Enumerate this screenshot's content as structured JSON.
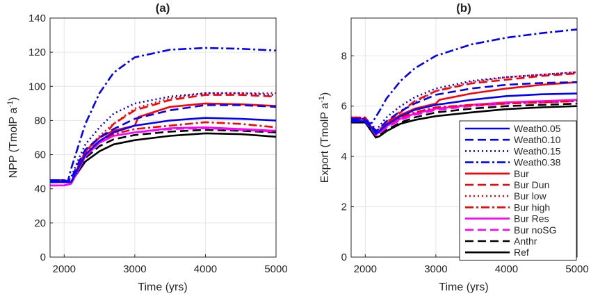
{
  "chart_data": [
    {
      "type": "line",
      "title": "(a)",
      "xlabel": "Time (yrs)",
      "ylabel": "NPP (TmolP a",
      "ylabel_sup": "-1",
      "ylabel_end": ")",
      "xlim": [
        1800,
        5000
      ],
      "ylim": [
        0,
        140
      ],
      "xticks": [
        2000,
        3000,
        4000,
        5000
      ],
      "yticks": [
        0,
        20,
        40,
        60,
        80,
        100,
        120,
        140
      ],
      "grid": true,
      "series": [
        {
          "name": "Weath0.05",
          "color": "#0000ff",
          "dash": "solid",
          "x": [
            1800,
            2000,
            2100,
            2200,
            2300,
            2500,
            2700,
            3000,
            3500,
            4000,
            4500,
            5000
          ],
          "y": [
            44,
            44,
            44,
            52,
            60,
            68,
            73,
            77,
            80,
            81.5,
            81,
            80
          ]
        },
        {
          "name": "Weath0.10",
          "color": "#0000ff",
          "dash": "dash",
          "x": [
            1800,
            2000,
            2050,
            2100,
            2200,
            2300,
            2500,
            2700,
            3000,
            3500,
            4000,
            4500,
            5000
          ],
          "y": [
            45,
            45,
            44,
            46,
            55,
            63,
            70,
            75,
            81,
            86,
            89,
            89,
            88
          ]
        },
        {
          "name": "Weath0.15",
          "color": "#0000ff",
          "dash": "dot",
          "x": [
            1800,
            2000,
            2050,
            2100,
            2200,
            2300,
            2500,
            2700,
            3000,
            3500,
            4000,
            4500,
            5000
          ],
          "y": [
            45,
            45,
            44,
            47,
            57,
            66,
            76,
            84,
            90,
            94,
            96,
            96,
            95
          ]
        },
        {
          "name": "Weath0.38",
          "color": "#0000ff",
          "dash": "dashdot",
          "x": [
            1800,
            2000,
            2050,
            2100,
            2200,
            2300,
            2500,
            2700,
            3000,
            3500,
            4000,
            4500,
            5000
          ],
          "y": [
            45,
            45,
            44,
            52,
            65,
            78,
            96,
            108,
            117,
            121.5,
            122.5,
            122,
            121
          ]
        },
        {
          "name": "Bur",
          "color": "#ff0000",
          "dash": "solid",
          "x": [
            1800,
            2000,
            2100,
            2200,
            2300,
            2500,
            2700,
            3000,
            3050,
            3500,
            4000,
            4500,
            5000
          ],
          "y": [
            45,
            45,
            44,
            53,
            62,
            70,
            74,
            77,
            82,
            88,
            90,
            89.5,
            88.5
          ]
        },
        {
          "name": "Bur Dun",
          "color": "#ff0000",
          "dash": "dash",
          "x": [
            1800,
            2000,
            2100,
            2200,
            2300,
            2500,
            2600,
            2700,
            3000,
            3500,
            4000,
            4500,
            5000
          ],
          "y": [
            45,
            45,
            44,
            53,
            62,
            70,
            73,
            78,
            86,
            92,
            95,
            95,
            94
          ]
        },
        {
          "name": "Bur low",
          "color": "#ff0000",
          "dash": "dot",
          "x": [
            1800,
            2000,
            2100,
            2200,
            2300,
            2500,
            2700,
            3000,
            3500,
            4000,
            4500,
            5000
          ],
          "y": [
            45,
            45,
            44,
            53,
            62,
            71,
            78,
            87,
            93,
            96,
            96,
            96
          ]
        },
        {
          "name": "Bur high",
          "color": "#ff0000",
          "dash": "dashdot",
          "x": [
            1800,
            2000,
            2100,
            2200,
            2300,
            2500,
            2700,
            3000,
            3500,
            4000,
            4500,
            5000
          ],
          "y": [
            45,
            45,
            44,
            53,
            61,
            68,
            72,
            75,
            77,
            79,
            78,
            76
          ]
        },
        {
          "name": "Bur Res",
          "color": "#ff00ff",
          "dash": "solid",
          "x": [
            1800,
            1900,
            2000,
            2100,
            2200,
            2300,
            2500,
            2700,
            3000,
            3500,
            4000,
            4500,
            5000
          ],
          "y": [
            42,
            42,
            42,
            43,
            51,
            59,
            67,
            71,
            73,
            75.5,
            76,
            75,
            74
          ]
        },
        {
          "name": "Bur noSG",
          "color": "#ff00ff",
          "dash": "dash",
          "x": [
            1800,
            1900,
            2000,
            2100,
            2200,
            2300,
            2500,
            2700,
            3000,
            3500,
            4000,
            4500,
            5000
          ],
          "y": [
            42,
            42,
            42,
            43,
            51,
            59,
            67,
            71,
            73,
            75,
            75.5,
            74.5,
            73.5
          ]
        },
        {
          "name": "Anthr",
          "color": "#000000",
          "dash": "dash",
          "x": [
            1800,
            2000,
            2100,
            2200,
            2300,
            2500,
            2700,
            3000,
            3500,
            4000,
            4500,
            5000
          ],
          "y": [
            44,
            44,
            44,
            51,
            58,
            65,
            69,
            71.5,
            73.5,
            74.5,
            74,
            73
          ]
        },
        {
          "name": "Ref",
          "color": "#000000",
          "dash": "solid",
          "x": [
            1800,
            2000,
            2100,
            2200,
            2300,
            2500,
            2700,
            3000,
            3500,
            4000,
            4500,
            5000
          ],
          "y": [
            44,
            44,
            44,
            50,
            56,
            62,
            66,
            68.5,
            71,
            72.5,
            72,
            70.5
          ]
        }
      ]
    },
    {
      "type": "line",
      "title": "(b)",
      "xlabel": "Time (yrs)",
      "ylabel": "Export (TmolP a",
      "ylabel_sup": "-1",
      "ylabel_end": ")",
      "xlim": [
        1800,
        5000
      ],
      "ylim": [
        0,
        9.5
      ],
      "xticks": [
        2000,
        3000,
        4000,
        5000
      ],
      "yticks": [
        0,
        2,
        4,
        6,
        8
      ],
      "grid": true,
      "legend": "bottom-right",
      "series": [
        {
          "name": "Weath0.05",
          "color": "#0000ff",
          "dash": "solid",
          "x": [
            1800,
            2000,
            2100,
            2150,
            2200,
            2300,
            2500,
            2700,
            3000,
            3500,
            4000,
            4500,
            5000
          ],
          "y": [
            5.4,
            5.4,
            5.1,
            4.9,
            5.0,
            5.25,
            5.6,
            5.85,
            6.05,
            6.25,
            6.4,
            6.47,
            6.5
          ]
        },
        {
          "name": "Weath0.10",
          "color": "#0000ff",
          "dash": "dash",
          "x": [
            1800,
            2000,
            2100,
            2150,
            2200,
            2300,
            2500,
            2700,
            3000,
            3500,
            4000,
            4500,
            5000
          ],
          "y": [
            5.45,
            5.45,
            5.2,
            5.0,
            5.1,
            5.4,
            5.8,
            6.1,
            6.45,
            6.7,
            6.85,
            6.92,
            6.95
          ]
        },
        {
          "name": "Weath0.15",
          "color": "#0000ff",
          "dash": "dot",
          "x": [
            1800,
            2000,
            2100,
            2150,
            2200,
            2300,
            2500,
            2700,
            3000,
            3500,
            4000,
            4500,
            5000
          ],
          "y": [
            5.5,
            5.5,
            5.25,
            5.05,
            5.2,
            5.55,
            6.0,
            6.35,
            6.7,
            7.0,
            7.15,
            7.25,
            7.35
          ]
        },
        {
          "name": "Weath0.38",
          "color": "#0000ff",
          "dash": "dashdot",
          "x": [
            1800,
            2000,
            2050,
            2100,
            2200,
            2300,
            2500,
            2700,
            3000,
            3500,
            4000,
            4500,
            5000
          ],
          "y": [
            5.5,
            5.5,
            5.3,
            5.35,
            5.8,
            6.3,
            7.0,
            7.5,
            8.0,
            8.45,
            8.72,
            8.9,
            9.05
          ]
        },
        {
          "name": "Bur",
          "color": "#ff0000",
          "dash": "solid",
          "x": [
            1800,
            2000,
            2100,
            2150,
            2200,
            2300,
            2500,
            2700,
            3000,
            3050,
            3500,
            4000,
            4500,
            5000
          ],
          "y": [
            5.5,
            5.5,
            5.1,
            4.9,
            5.0,
            5.3,
            5.65,
            5.9,
            6.1,
            6.25,
            6.5,
            6.7,
            6.85,
            6.95
          ]
        },
        {
          "name": "Bur Dun",
          "color": "#ff0000",
          "dash": "dash",
          "x": [
            1800,
            2000,
            2100,
            2150,
            2200,
            2300,
            2500,
            2700,
            3000,
            3500,
            4000,
            4500,
            5000
          ],
          "y": [
            5.55,
            5.55,
            5.15,
            4.95,
            5.05,
            5.35,
            5.75,
            6.2,
            6.6,
            6.9,
            7.05,
            7.2,
            7.3
          ]
        },
        {
          "name": "Bur low",
          "color": "#ff0000",
          "dash": "dot",
          "x": [
            1800,
            2000,
            2100,
            2150,
            2200,
            2300,
            2500,
            2700,
            3000,
            3500,
            4000,
            4500,
            5000
          ],
          "y": [
            5.55,
            5.55,
            5.15,
            4.95,
            5.05,
            5.35,
            5.8,
            6.15,
            6.6,
            6.95,
            7.15,
            7.25,
            7.35
          ]
        },
        {
          "name": "Bur high",
          "color": "#ff0000",
          "dash": "dashdot",
          "x": [
            1800,
            2000,
            2100,
            2150,
            2200,
            2300,
            2500,
            2700,
            3000,
            3500,
            4000,
            4500,
            5000
          ],
          "y": [
            5.5,
            5.5,
            5.1,
            4.9,
            5.0,
            5.25,
            5.55,
            5.75,
            5.95,
            6.05,
            6.1,
            6.15,
            6.2
          ]
        },
        {
          "name": "Bur Res",
          "color": "#ff00ff",
          "dash": "solid",
          "x": [
            1800,
            2000,
            2100,
            2150,
            2200,
            2300,
            2500,
            2700,
            3000,
            3500,
            4000,
            4500,
            5000
          ],
          "y": [
            5.45,
            5.45,
            5.1,
            4.9,
            4.95,
            5.2,
            5.5,
            5.7,
            5.9,
            6.05,
            6.15,
            6.2,
            6.25
          ]
        },
        {
          "name": "Bur noSG",
          "color": "#ff00ff",
          "dash": "dash",
          "x": [
            1800,
            2000,
            2100,
            2150,
            2200,
            2300,
            2500,
            2700,
            3000,
            3500,
            4000,
            4500,
            5000
          ],
          "y": [
            5.4,
            5.4,
            5.05,
            4.85,
            4.9,
            5.15,
            5.45,
            5.65,
            5.85,
            6.0,
            6.1,
            6.15,
            6.2
          ]
        },
        {
          "name": "Anthr",
          "color": "#000000",
          "dash": "dash",
          "x": [
            1800,
            2000,
            2100,
            2150,
            2200,
            2300,
            2500,
            2700,
            3000,
            3500,
            4000,
            4500,
            5000
          ],
          "y": [
            5.4,
            5.4,
            5.0,
            4.8,
            4.85,
            5.05,
            5.35,
            5.55,
            5.75,
            5.9,
            6.0,
            6.05,
            6.1
          ]
        },
        {
          "name": "Ref",
          "color": "#000000",
          "dash": "solid",
          "x": [
            1800,
            2000,
            2100,
            2150,
            2200,
            2300,
            2500,
            2700,
            3000,
            3500,
            4000,
            4500,
            5000
          ],
          "y": [
            5.35,
            5.35,
            4.95,
            4.75,
            4.8,
            5.0,
            5.3,
            5.45,
            5.6,
            5.75,
            5.88,
            5.95,
            6.0
          ]
        }
      ]
    }
  ]
}
